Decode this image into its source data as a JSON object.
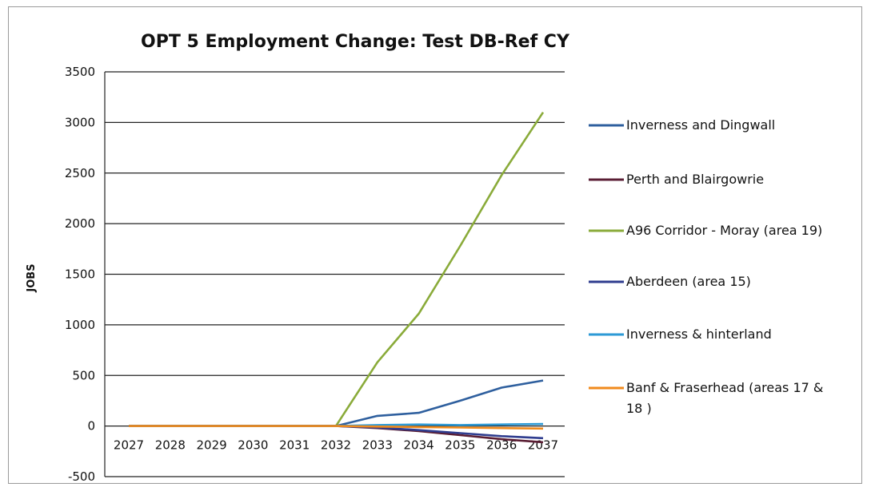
{
  "chart_data": {
    "type": "line",
    "title": "OPT 5 Employment Change:  Test DB-Ref CY",
    "xlabel": "",
    "ylabel": "JOBS",
    "ylim": [
      -500,
      3500
    ],
    "yticks": [
      -500,
      0,
      500,
      1000,
      1500,
      2000,
      2500,
      3000,
      3500
    ],
    "grid": "horizontal",
    "legend_position": "right",
    "categories": [
      "2027",
      "2028",
      "2029",
      "2030",
      "2031",
      "2032",
      "2033",
      "2034",
      "2035",
      "2036",
      "2037"
    ],
    "series": [
      {
        "name": "Inverness and Dingwall",
        "color": "#2e5f9e",
        "values": [
          0,
          0,
          0,
          0,
          0,
          0,
          100,
          130,
          250,
          380,
          450
        ]
      },
      {
        "name": "Perth and Blairgowrie",
        "color": "#5a1e34",
        "values": [
          0,
          0,
          0,
          0,
          0,
          0,
          -20,
          -50,
          -90,
          -130,
          -160
        ]
      },
      {
        "name": "A96 Corridor - Moray (area 19)",
        "color": "#8aab3a",
        "values": [
          0,
          0,
          0,
          0,
          0,
          0,
          630,
          1110,
          1780,
          2480,
          3100
        ]
      },
      {
        "name": "Aberdeen (area 15)",
        "color": "#2f3d8f",
        "values": [
          0,
          0,
          0,
          0,
          0,
          0,
          -15,
          -40,
          -70,
          -100,
          -120
        ]
      },
      {
        "name": "Inverness & hinterland",
        "color": "#2d9ad6",
        "values": [
          0,
          0,
          0,
          0,
          0,
          0,
          10,
          15,
          10,
          15,
          20
        ]
      },
      {
        "name": "Banf & Fraserhead (areas 17 & 18 )",
        "color": "#f08a1c",
        "values": [
          0,
          0,
          0,
          0,
          0,
          0,
          -5,
          -10,
          -15,
          -20,
          -25
        ]
      }
    ]
  }
}
